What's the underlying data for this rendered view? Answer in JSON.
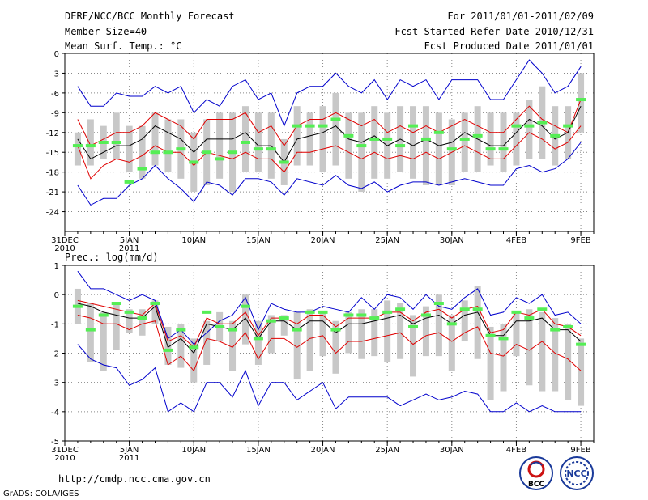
{
  "header": {
    "title": "DERF/NCC/BCC Monthly Forecast",
    "member": "Member Size=40",
    "variable1": "Mean Surf. Temp.: °C",
    "period": "For 2011/01/01-2011/02/09",
    "started": "Fcst Started Refer Date 2010/12/31",
    "produced": "Fcst Produced Date 2011/01/01"
  },
  "footer": {
    "url": "http://cmdp.ncc.cma.gov.cn",
    "credit": "GrADS: COLA/IGES",
    "logo1_text": "BCC",
    "logo2_text": "NCC"
  },
  "colors": {
    "blue": "#0000cc",
    "red": "#e00000",
    "black": "#000000",
    "green": "#55ee55",
    "box": "#c8c8c8"
  },
  "chart_data": [
    {
      "type": "line",
      "title": "Mean Surf. Temp.: °C",
      "ylim": [
        -27,
        0
      ],
      "yticks": [
        0,
        -3,
        -6,
        -9,
        -12,
        -15,
        -18,
        -21,
        -24
      ],
      "xticks": [
        {
          "day": 0,
          "label": "31DEC",
          "sub": "2010"
        },
        {
          "day": 5,
          "label": "5JAN",
          "sub": "2011"
        },
        {
          "day": 10,
          "label": "10JAN",
          "sub": ""
        },
        {
          "day": 15,
          "label": "15JAN",
          "sub": ""
        },
        {
          "day": 20,
          "label": "20JAN",
          "sub": ""
        },
        {
          "day": 25,
          "label": "25JAN",
          "sub": ""
        },
        {
          "day": 30,
          "label": "30JAN",
          "sub": ""
        },
        {
          "day": 35,
          "label": "4FEB",
          "sub": ""
        },
        {
          "day": 40,
          "label": "9FEB",
          "sub": ""
        }
      ],
      "days": [
        1,
        2,
        3,
        4,
        5,
        6,
        7,
        8,
        9,
        10,
        11,
        12,
        13,
        14,
        15,
        16,
        17,
        18,
        19,
        20,
        21,
        22,
        23,
        24,
        25,
        26,
        27,
        28,
        29,
        30,
        31,
        32,
        33,
        34,
        35,
        36,
        37,
        38,
        39,
        40
      ],
      "series": [
        {
          "name": "max",
          "color": "blue",
          "values": [
            -5,
            -8,
            -8,
            -6,
            -6.5,
            -6.5,
            -5,
            -6,
            -5,
            -9,
            -7,
            -8,
            -5,
            -4,
            -7,
            -6,
            -11,
            -6,
            -5,
            -5,
            -3,
            -5,
            -6,
            -4,
            -7,
            -4,
            -5,
            -4,
            -7,
            -4,
            -4,
            -4,
            -7,
            -7,
            -4,
            -1,
            -3,
            -6,
            -5,
            -2
          ]
        },
        {
          "name": "upper",
          "color": "red",
          "values": [
            -10,
            -14,
            -13,
            -12,
            -12,
            -11,
            -9,
            -10,
            -11,
            -13,
            -10,
            -10,
            -10,
            -9,
            -12,
            -11,
            -14,
            -11,
            -10,
            -10,
            -9,
            -10,
            -11,
            -10,
            -12,
            -11,
            -12,
            -11,
            -12,
            -11,
            -10,
            -11,
            -12,
            -12,
            -10,
            -8,
            -10,
            -11,
            -12,
            -7
          ]
        },
        {
          "name": "mean",
          "color": "black",
          "values": [
            -13,
            -16,
            -15,
            -14,
            -14,
            -13,
            -11,
            -12,
            -13,
            -15,
            -13,
            -13,
            -13,
            -12,
            -14,
            -14,
            -16.5,
            -13,
            -12.5,
            -12,
            -11,
            -13,
            -13.5,
            -12.5,
            -14,
            -13,
            -14,
            -13,
            -14,
            -13.5,
            -12,
            -13,
            -14,
            -14,
            -12,
            -10,
            -11,
            -13,
            -12,
            -8
          ]
        },
        {
          "name": "lower",
          "color": "red",
          "values": [
            -14,
            -19,
            -17,
            -16,
            -16.5,
            -15.5,
            -14,
            -15,
            -15,
            -17,
            -15,
            -15.5,
            -16,
            -15,
            -16,
            -16,
            -18,
            -15,
            -15,
            -14.5,
            -14,
            -15,
            -16,
            -15,
            -16,
            -15.5,
            -16,
            -15,
            -16,
            -15,
            -14,
            -15,
            -16,
            -16,
            -14,
            -12,
            -13,
            -14.5,
            -13.5,
            -11
          ]
        },
        {
          "name": "min",
          "color": "blue",
          "values": [
            -20,
            -23,
            -22,
            -22,
            -20,
            -19,
            -17,
            -19,
            -20.5,
            -22.5,
            -19.5,
            -20,
            -21.5,
            -19,
            -19,
            -19.5,
            -21.5,
            -19,
            -19.5,
            -20,
            -18.5,
            -20,
            -20.5,
            -19.5,
            -21,
            -20,
            -19.5,
            -19.5,
            -20,
            -19.5,
            -19,
            -19.5,
            -20,
            -20,
            -17.5,
            -17,
            -18,
            -17.5,
            -16,
            -13.5
          ]
        }
      ],
      "boxes": [
        [
          -17,
          -12
        ],
        [
          -17,
          -10
        ],
        [
          -16,
          -11
        ],
        [
          -16,
          -9
        ],
        [
          -18,
          -11
        ],
        [
          -19,
          -11
        ],
        [
          -17,
          -9
        ],
        [
          -18,
          -10
        ],
        [
          -19,
          -10
        ],
        [
          -21,
          -12
        ],
        [
          -20,
          -10
        ],
        [
          -19,
          -9
        ],
        [
          -21,
          -9
        ],
        [
          -18,
          -8
        ],
        [
          -18,
          -9
        ],
        [
          -19,
          -9
        ],
        [
          -20,
          -13
        ],
        [
          -17,
          -8
        ],
        [
          -17,
          -9
        ],
        [
          -18,
          -8
        ],
        [
          -17,
          -6
        ],
        [
          -19,
          -9
        ],
        [
          -21,
          -9
        ],
        [
          -19,
          -8
        ],
        [
          -19,
          -9
        ],
        [
          -18,
          -8
        ],
        [
          -19,
          -8
        ],
        [
          -20,
          -8
        ],
        [
          -20,
          -9
        ],
        [
          -20,
          -10
        ],
        [
          -18,
          -9
        ],
        [
          -18,
          -8
        ],
        [
          -17,
          -9
        ],
        [
          -18,
          -9
        ],
        [
          -17,
          -9
        ],
        [
          -16,
          -7
        ],
        [
          -16,
          -5
        ],
        [
          -17,
          -8
        ],
        [
          -16,
          -8
        ],
        [
          -12,
          -3
        ]
      ],
      "observed": [
        -14,
        -14,
        -13.5,
        -13.5,
        -19.5,
        -17.5,
        -15,
        -15,
        -14.5,
        -16.5,
        -15,
        -16,
        -15,
        -13.5,
        -14.5,
        -14.5,
        -16.5,
        -11,
        -11,
        -11,
        -10,
        -12.5,
        -14,
        -13,
        -13,
        -14,
        -11,
        -13,
        -12,
        -14.5,
        -13,
        -12.5,
        -14.5,
        -14.5,
        -11,
        -11,
        -10.5,
        -12.5,
        -11,
        -7
      ]
    },
    {
      "type": "line",
      "title": "Prec.: log(mm/d)",
      "ylim": [
        -5,
        1
      ],
      "yticks": [
        1,
        0,
        -1,
        -2,
        -3,
        -4,
        -5
      ],
      "xticks": [
        {
          "day": 0,
          "label": "31DEC",
          "sub": "2010"
        },
        {
          "day": 5,
          "label": "5JAN",
          "sub": "2011"
        },
        {
          "day": 10,
          "label": "10JAN",
          "sub": ""
        },
        {
          "day": 15,
          "label": "15JAN",
          "sub": ""
        },
        {
          "day": 20,
          "label": "20JAN",
          "sub": ""
        },
        {
          "day": 25,
          "label": "25JAN",
          "sub": ""
        },
        {
          "day": 30,
          "label": "30JAN",
          "sub": ""
        },
        {
          "day": 35,
          "label": "4FEB",
          "sub": ""
        },
        {
          "day": 40,
          "label": "9FEB",
          "sub": ""
        }
      ],
      "days": [
        1,
        2,
        3,
        4,
        5,
        6,
        7,
        8,
        9,
        10,
        11,
        12,
        13,
        14,
        15,
        16,
        17,
        18,
        19,
        20,
        21,
        22,
        23,
        24,
        25,
        26,
        27,
        28,
        29,
        30,
        31,
        32,
        33,
        34,
        35,
        36,
        37,
        38,
        39,
        40
      ],
      "series": [
        {
          "name": "max",
          "color": "blue",
          "values": [
            0.8,
            0.2,
            0.2,
            0,
            -0.2,
            0,
            -0.2,
            -1.5,
            -1.2,
            -1.7,
            -1.3,
            -0.9,
            -0.7,
            -0.1,
            -1.2,
            -0.3,
            -0.5,
            -0.6,
            -0.6,
            -0.4,
            -0.5,
            -0.6,
            -0.1,
            -0.5,
            0,
            -0.1,
            -0.5,
            0,
            -0.4,
            -0.5,
            -0.1,
            0.2,
            -0.7,
            -0.6,
            -0.1,
            -0.3,
            0,
            -0.7,
            -0.6,
            -1
          ]
        },
        {
          "name": "upper",
          "color": "red",
          "values": [
            -0.2,
            -0.3,
            -0.4,
            -0.5,
            -0.6,
            -0.7,
            -0.3,
            -1.6,
            -1.4,
            -1.8,
            -0.8,
            -1.0,
            -1.0,
            -0.6,
            -1.4,
            -0.8,
            -0.8,
            -1.0,
            -0.7,
            -0.7,
            -1.1,
            -0.8,
            -0.8,
            -0.8,
            -0.6,
            -0.6,
            -0.9,
            -0.6,
            -0.5,
            -0.8,
            -0.5,
            -0.4,
            -1.3,
            -1.2,
            -0.6,
            -0.7,
            -0.5,
            -1.0,
            -1.1,
            -1.4
          ]
        },
        {
          "name": "mean",
          "color": "black",
          "values": [
            -0.3,
            -0.4,
            -0.6,
            -0.7,
            -0.8,
            -0.8,
            -0.4,
            -1.8,
            -1.5,
            -2.0,
            -1.0,
            -1.1,
            -1.2,
            -0.8,
            -1.5,
            -0.9,
            -0.9,
            -1.2,
            -0.9,
            -0.9,
            -1.3,
            -1.0,
            -1.0,
            -0.9,
            -0.8,
            -0.7,
            -1.0,
            -0.8,
            -0.7,
            -1.0,
            -0.7,
            -0.6,
            -1.4,
            -1.4,
            -0.9,
            -0.9,
            -0.8,
            -1.2,
            -1.2,
            -1.6
          ]
        },
        {
          "name": "lower",
          "color": "red",
          "values": [
            -0.7,
            -0.8,
            -1.0,
            -1.0,
            -1.2,
            -1.0,
            -0.9,
            -2.4,
            -2.1,
            -2.6,
            -1.5,
            -1.6,
            -1.8,
            -1.3,
            -2.2,
            -1.5,
            -1.5,
            -1.8,
            -1.5,
            -1.4,
            -2.0,
            -1.6,
            -1.6,
            -1.5,
            -1.4,
            -1.3,
            -1.7,
            -1.4,
            -1.3,
            -1.6,
            -1.3,
            -1.1,
            -2.0,
            -2.1,
            -1.7,
            -1.9,
            -1.6,
            -2.0,
            -2.2,
            -2.6
          ]
        },
        {
          "name": "min",
          "color": "blue",
          "values": [
            -1.7,
            -2.2,
            -2.4,
            -2.5,
            -3.1,
            -2.9,
            -2.5,
            -4.0,
            -3.7,
            -4.0,
            -3.0,
            -3.0,
            -3.5,
            -2.6,
            -3.8,
            -3.0,
            -3.0,
            -3.6,
            -3.3,
            -3.0,
            -3.9,
            -3.5,
            -3.5,
            -3.5,
            -3.5,
            -3.8,
            -3.6,
            -3.4,
            -3.6,
            -3.5,
            -3.3,
            -3.4,
            -4.0,
            -4.0,
            -3.7,
            -4.0,
            -3.8,
            -4.0,
            -4.0,
            -4.0
          ]
        }
      ],
      "boxes": [
        [
          -1.0,
          0.2
        ],
        [
          -2.3,
          -0.3
        ],
        [
          -2.6,
          -0.6
        ],
        [
          -1.9,
          -0.3
        ],
        [
          -1.3,
          -0.5
        ],
        [
          -1.4,
          -0.5
        ],
        [
          -1.0,
          -0.2
        ],
        [
          -2.4,
          -1.1
        ],
        [
          -2.5,
          -1.0
        ],
        [
          -3.0,
          -1.5
        ],
        [
          -2.4,
          -0.9
        ],
        [
          -1.6,
          -0.6
        ],
        [
          -2.6,
          -0.9
        ],
        [
          -1.7,
          0.0
        ],
        [
          -2.4,
          -0.9
        ],
        [
          -2.0,
          -0.7
        ],
        [
          -1.4,
          -0.7
        ],
        [
          -2.9,
          -0.6
        ],
        [
          -2.6,
          -0.5
        ],
        [
          -2.1,
          -0.6
        ],
        [
          -2.7,
          -0.9
        ],
        [
          -2.0,
          -0.6
        ],
        [
          -2.2,
          -0.5
        ],
        [
          -2.1,
          -0.5
        ],
        [
          -2.3,
          -0.2
        ],
        [
          -2.2,
          -0.3
        ],
        [
          -2.8,
          -0.7
        ],
        [
          -2.1,
          -0.4
        ],
        [
          -2.1,
          0.0
        ],
        [
          -2.6,
          -0.7
        ],
        [
          -1.6,
          -0.2
        ],
        [
          -2.2,
          0.3
        ],
        [
          -3.6,
          -1.1
        ],
        [
          -3.3,
          -1.0
        ],
        [
          -2.1,
          -0.6
        ],
        [
          -3.1,
          -0.5
        ],
        [
          -3.3,
          -0.6
        ],
        [
          -3.3,
          -0.8
        ],
        [
          -3.6,
          -1.0
        ],
        [
          -3.8,
          -1.5
        ]
      ],
      "observed": [
        -0.4,
        -1.2,
        -0.7,
        -0.3,
        -0.6,
        -0.8,
        -0.3,
        -1.9,
        -1.2,
        -1.8,
        -0.6,
        -1.1,
        -1.2,
        -0.4,
        -1.5,
        -0.9,
        -0.8,
        -1.2,
        -0.6,
        -0.6,
        -1.2,
        -0.7,
        -0.7,
        -0.8,
        -0.6,
        -0.5,
        -1.1,
        -0.7,
        -0.3,
        -1.0,
        -0.5,
        -0.5,
        -1.4,
        -1.5,
        -0.6,
        -0.8,
        -0.5,
        -1.2,
        -1.1,
        -1.7
      ]
    }
  ]
}
